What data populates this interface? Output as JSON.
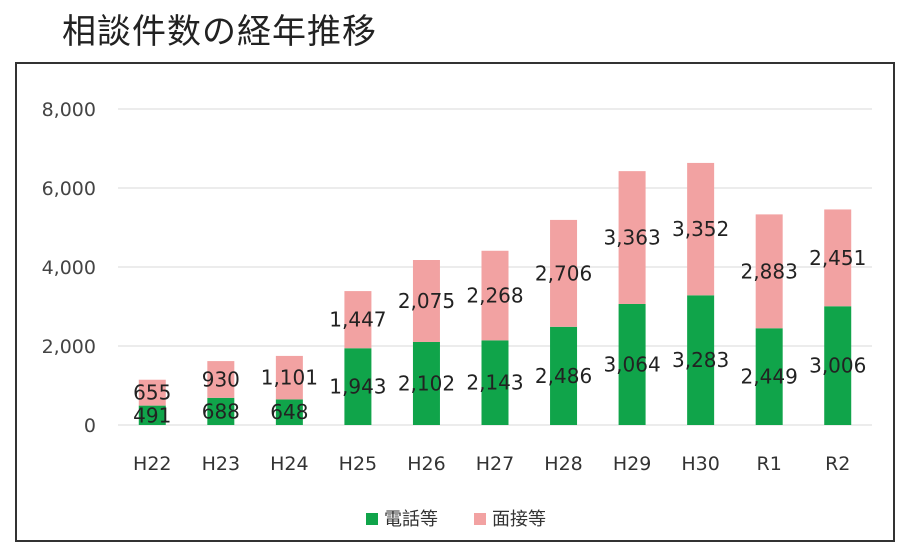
{
  "title": "相談件数の経年推移",
  "colors": {
    "phone": "#10a44a",
    "visit": "#f2a2a2",
    "grid": "#d9d9d9"
  },
  "chart_data": {
    "type": "bar",
    "stacked": true,
    "title": "相談件数の経年推移",
    "categories": [
      "H22",
      "H23",
      "H24",
      "H25",
      "H26",
      "H27",
      "H28",
      "H29",
      "H30",
      "R1",
      "R2"
    ],
    "series": [
      {
        "name": "電話等",
        "color": "#10a44a",
        "values": [
          491,
          688,
          648,
          1943,
          2102,
          2143,
          2486,
          3064,
          3283,
          2449,
          3006
        ],
        "labels": [
          "491",
          "688",
          "648",
          "1,943",
          "2,102",
          "2,143",
          "2,486",
          "3,064",
          "3,283",
          "2,449",
          "3,006"
        ]
      },
      {
        "name": "面接等",
        "color": "#f2a2a2",
        "values": [
          655,
          930,
          1101,
          1447,
          2075,
          2268,
          2706,
          3363,
          3352,
          2883,
          2451
        ],
        "labels": [
          "655",
          "930",
          "1,101",
          "1,447",
          "2,075",
          "2,268",
          "2,706",
          "3,363",
          "3,352",
          "2,883",
          "2,451"
        ]
      }
    ],
    "ylim": [
      0,
      8000
    ],
    "yticks": [
      0,
      2000,
      4000,
      6000,
      8000
    ],
    "ytick_labels": [
      "0",
      "2,000",
      "4,000",
      "6,000",
      "8,000"
    ],
    "grid": true,
    "legend": "bottom",
    "xlabel": "",
    "ylabel": ""
  }
}
